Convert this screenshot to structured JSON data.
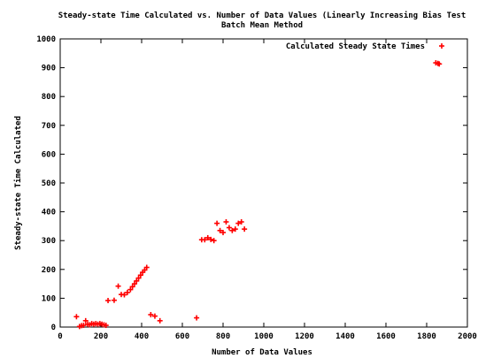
{
  "chart_data": {
    "type": "scatter",
    "title_line1": "Steady-state Time Calculated vs. Number of Data Values (Linearly Increasing Bias Test",
    "title_line2": "Batch Mean Method",
    "xlabel": "Number of Data Values",
    "ylabel": "Steady-state Time Calculated",
    "xlim": [
      0,
      2000
    ],
    "ylim": [
      0,
      1000
    ],
    "xticks": [
      0,
      200,
      400,
      600,
      800,
      1000,
      1200,
      1400,
      1600,
      1800,
      2000
    ],
    "yticks": [
      0,
      100,
      200,
      300,
      400,
      500,
      600,
      700,
      800,
      900,
      1000
    ],
    "grid": false,
    "legend_position": "top-right",
    "series": [
      {
        "name": "Calculated Steady State Times",
        "color": "#ff0000",
        "marker": "plus",
        "points": [
          [
            80,
            36
          ],
          [
            95,
            2
          ],
          [
            105,
            5
          ],
          [
            115,
            6
          ],
          [
            125,
            22
          ],
          [
            135,
            10
          ],
          [
            145,
            8
          ],
          [
            155,
            12
          ],
          [
            165,
            10
          ],
          [
            175,
            12
          ],
          [
            185,
            10
          ],
          [
            195,
            12
          ],
          [
            205,
            10
          ],
          [
            215,
            8
          ],
          [
            225,
            6
          ],
          [
            235,
            92
          ],
          [
            265,
            93
          ],
          [
            285,
            142
          ],
          [
            300,
            113
          ],
          [
            315,
            112
          ],
          [
            330,
            120
          ],
          [
            345,
            130
          ],
          [
            355,
            140
          ],
          [
            365,
            150
          ],
          [
            375,
            160
          ],
          [
            385,
            170
          ],
          [
            395,
            180
          ],
          [
            405,
            190
          ],
          [
            415,
            198
          ],
          [
            425,
            207
          ],
          [
            445,
            43
          ],
          [
            465,
            38
          ],
          [
            490,
            22
          ],
          [
            670,
            32
          ],
          [
            695,
            303
          ],
          [
            710,
            303
          ],
          [
            725,
            310
          ],
          [
            740,
            304
          ],
          [
            755,
            300
          ],
          [
            770,
            360
          ],
          [
            785,
            335
          ],
          [
            800,
            328
          ],
          [
            815,
            365
          ],
          [
            830,
            345
          ],
          [
            845,
            335
          ],
          [
            860,
            340
          ],
          [
            875,
            360
          ],
          [
            890,
            365
          ],
          [
            905,
            340
          ],
          [
            1845,
            917
          ],
          [
            1855,
            915
          ],
          [
            1862,
            913
          ]
        ]
      }
    ]
  }
}
